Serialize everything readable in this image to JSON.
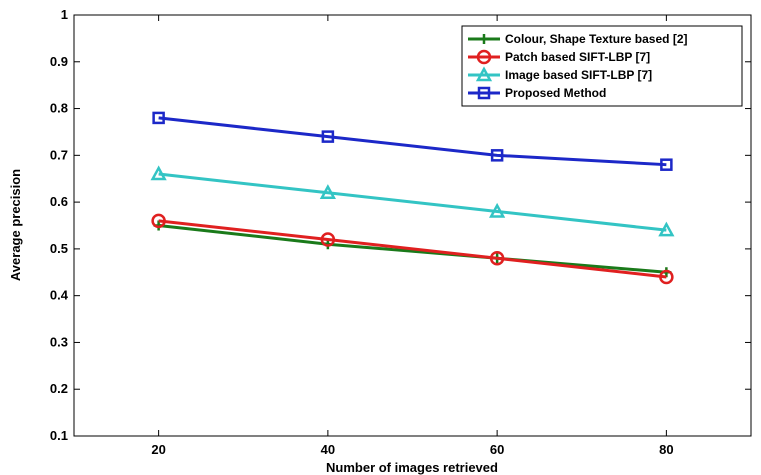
{
  "chart_data": {
    "type": "line",
    "title": "",
    "xlabel": "Number of images retrieved",
    "ylabel": "Average precision",
    "xlim": [
      10,
      90
    ],
    "ylim": [
      0.1,
      1
    ],
    "xticks": [
      20,
      40,
      60,
      80
    ],
    "yticks": [
      0.1,
      0.2,
      0.3,
      0.4,
      0.5,
      0.6,
      0.7,
      0.8,
      0.9,
      1
    ],
    "legend_position": "top-right",
    "grid": false,
    "x": [
      20,
      40,
      60,
      80
    ],
    "series": [
      {
        "name": "Colour, Shape Texture based [2]",
        "values": [
          0.55,
          0.51,
          0.48,
          0.45
        ],
        "color": "#1a7a1a",
        "marker": "plus"
      },
      {
        "name": "Patch based SIFT-LBP [7]",
        "values": [
          0.56,
          0.52,
          0.48,
          0.44
        ],
        "color": "#e02020",
        "marker": "circle"
      },
      {
        "name": "Image based SIFT-LBP [7]",
        "values": [
          0.66,
          0.62,
          0.58,
          0.54
        ],
        "color": "#33c4c4",
        "marker": "triangle"
      },
      {
        "name": "Proposed Method",
        "values": [
          0.78,
          0.74,
          0.7,
          0.68
        ],
        "color": "#1c28c8",
        "marker": "square"
      }
    ]
  }
}
